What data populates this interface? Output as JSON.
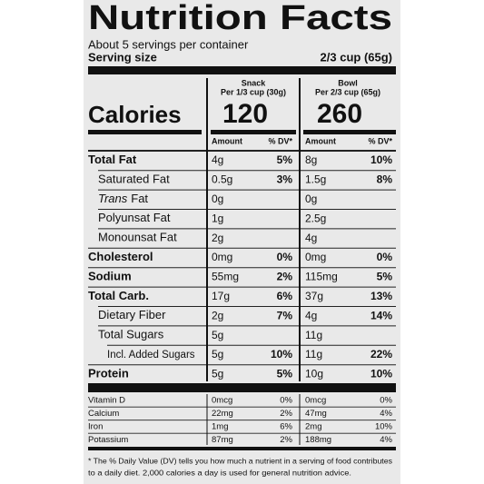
{
  "title": "Nutrition Facts",
  "servings": "About 5 servings per container",
  "serving_size": {
    "label": "Serving size",
    "value": "2/3 cup (65g)"
  },
  "calories_label": "Calories",
  "columns": [
    {
      "name": "Snack",
      "portion": "Per 1/3 cup (30g)",
      "calories": "120"
    },
    {
      "name": "Bowl",
      "portion": "Per 2/3 cup (65g)",
      "calories": "260"
    }
  ],
  "amount_header": "Amount",
  "dv_header": "% DV*",
  "rows": [
    {
      "label": "Total Fat",
      "bold": true,
      "indent": 0,
      "snack": [
        "4g",
        "5%"
      ],
      "bowl": [
        "8g",
        "10%"
      ]
    },
    {
      "label": "Saturated Fat",
      "bold": false,
      "indent": 1,
      "snack": [
        "0.5g",
        "3%"
      ],
      "bowl": [
        "1.5g",
        "8%"
      ]
    },
    {
      "label_italic": "Trans",
      "label": "Fat",
      "bold": false,
      "indent": 1,
      "snack": [
        "0g"
      ],
      "bowl": [
        "0g"
      ]
    },
    {
      "label": "Polyunsat Fat",
      "bold": false,
      "indent": 1,
      "snack": [
        "1g"
      ],
      "bowl": [
        "2.5g"
      ]
    },
    {
      "label": "Monounsat Fat",
      "bold": false,
      "indent": 1,
      "snack": [
        "2g"
      ],
      "bowl": [
        "4g"
      ]
    },
    {
      "label": "Cholesterol",
      "bold": true,
      "indent": 0,
      "snack": [
        "0mg",
        "0%"
      ],
      "bowl": [
        "0mg",
        "0%"
      ]
    },
    {
      "label": "Sodium",
      "bold": true,
      "indent": 0,
      "snack": [
        "55mg",
        "2%"
      ],
      "bowl": [
        "115mg",
        "5%"
      ]
    },
    {
      "label": "Total Carb.",
      "bold": true,
      "indent": 0,
      "snack": [
        "17g",
        "6%"
      ],
      "bowl": [
        "37g",
        "13%"
      ]
    },
    {
      "label": "Dietary Fiber",
      "bold": false,
      "indent": 1,
      "snack": [
        "2g",
        "7%"
      ],
      "bowl": [
        "4g",
        "14%"
      ]
    },
    {
      "label": "Total Sugars",
      "bold": false,
      "indent": 1,
      "snack": [
        "5g"
      ],
      "bowl": [
        "11g"
      ]
    },
    {
      "label": "Incl. Added Sugars",
      "bold": false,
      "indent": 2,
      "snack": [
        "5g",
        "10%"
      ],
      "bowl": [
        "11g",
        "22%"
      ]
    },
    {
      "label": "Protein",
      "bold": true,
      "indent": 0,
      "snack": [
        "5g",
        "5%"
      ],
      "bowl": [
        "10g",
        "10%"
      ]
    }
  ],
  "vitamins": [
    {
      "label": "Vitamin D",
      "snack": [
        "0mcg",
        "0%"
      ],
      "bowl": [
        "0mcg",
        "0%"
      ]
    },
    {
      "label": "Calcium",
      "snack": [
        "22mg",
        "2%"
      ],
      "bowl": [
        "47mg",
        "4%"
      ]
    },
    {
      "label": "Iron",
      "snack": [
        "1mg",
        "6%"
      ],
      "bowl": [
        "2mg",
        "10%"
      ]
    },
    {
      "label": "Potassium",
      "snack": [
        "87mg",
        "2%"
      ],
      "bowl": [
        "188mg",
        "4%"
      ]
    }
  ],
  "footnote": [
    "* The % Daily Value (DV) tells you how much a nutrient in a serving of food contributes",
    "to a daily diet. 2,000 calories a day is used for general nutrition advice."
  ]
}
